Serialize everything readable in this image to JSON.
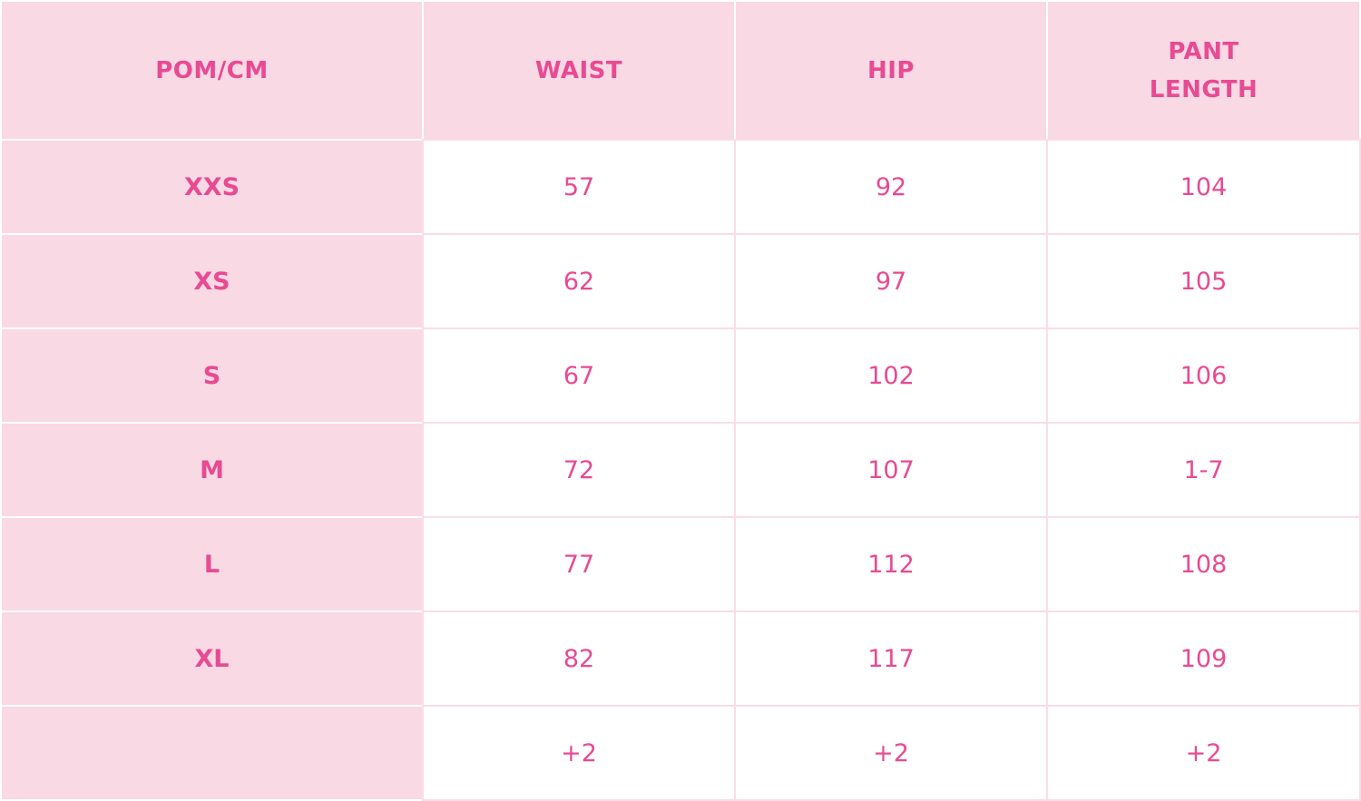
{
  "colors": {
    "accent": "#e84a93",
    "header_bg": "#f9d9e4"
  },
  "headers": [
    "POM/CM",
    "WAIST",
    "HIP",
    "PANT\nLENGTH"
  ],
  "rows": [
    {
      "size": "XXS",
      "waist": "57",
      "hip": "92",
      "pant_length": "104"
    },
    {
      "size": "XS",
      "waist": "62",
      "hip": "97",
      "pant_length": "105"
    },
    {
      "size": "S",
      "waist": "67",
      "hip": "102",
      "pant_length": "106"
    },
    {
      "size": "M",
      "waist": "72",
      "hip": "107",
      "pant_length": "1-7"
    },
    {
      "size": "L",
      "waist": "77",
      "hip": "112",
      "pant_length": "108"
    },
    {
      "size": "XL",
      "waist": "82",
      "hip": "117",
      "pant_length": "109"
    },
    {
      "size": "",
      "waist": "+2",
      "hip": "+2",
      "pant_length": "+2"
    }
  ]
}
